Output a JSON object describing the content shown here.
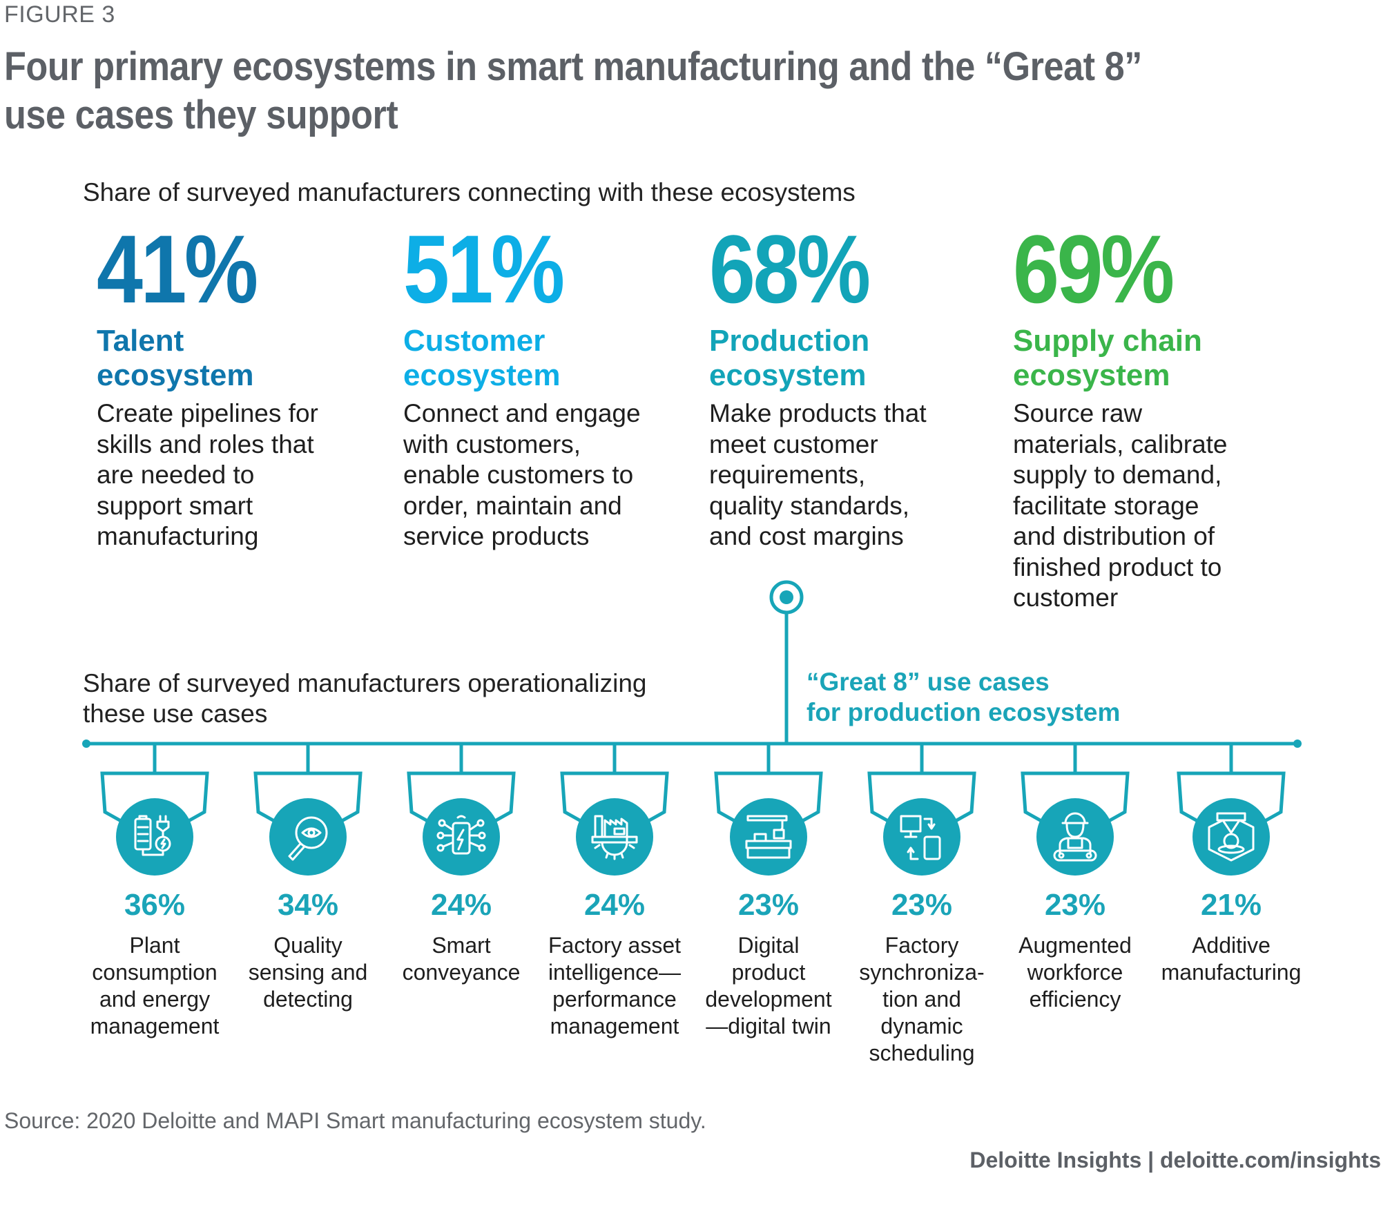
{
  "header": {
    "figure_label": "FIGURE 3",
    "title": "Four primary ecosystems in smart manufacturing and the “Great 8” use cases they support"
  },
  "ecosystems_section": {
    "subtitle": "Share of surveyed manufacturers connecting with these ecosystems",
    "items": [
      {
        "percent": "41%",
        "name_line1": "Talent",
        "name_line2": "ecosystem",
        "description": "Create pipelines for skills and roles that are needed to support smart manufacturing",
        "color": "#0f76ac"
      },
      {
        "percent": "51%",
        "name_line1": "Customer",
        "name_line2": "ecosystem",
        "description": "Connect and engage with customers, enable customers to order, maintain and service products",
        "color": "#0daee6"
      },
      {
        "percent": "68%",
        "name_line1": "Production",
        "name_line2": "ecosystem",
        "description": "Make products that meet customer requirements, quality standards, and cost margins",
        "color": "#12a4b8"
      },
      {
        "percent": "69%",
        "name_line1": "Supply chain",
        "name_line2": "ecosystem",
        "description": "Source raw materials, calibrate supply to demand, facilitate storage and distribution of finished product to customer",
        "color": "#3ab54a"
      }
    ]
  },
  "use_cases_section": {
    "subtitle": "Share of surveyed manufacturers operationalizing these use cases",
    "great8_line1": "“Great 8” use cases",
    "great8_line2": "for production ecosystem",
    "accent_color": "#17a5b8",
    "items": [
      {
        "percent": "36%",
        "label_lines": [
          "Plant",
          "consumption",
          "and energy",
          "management"
        ],
        "icon": "battery-plug-icon"
      },
      {
        "percent": "34%",
        "label_lines": [
          "Quality",
          "sensing and",
          "detecting"
        ],
        "icon": "magnifier-eye-icon"
      },
      {
        "percent": "24%",
        "label_lines": [
          "Smart",
          "conveyance"
        ],
        "icon": "smart-device-network-icon"
      },
      {
        "percent": "24%",
        "label_lines": [
          "Factory asset",
          "intelligence—",
          "performance",
          "management"
        ],
        "icon": "factory-gear-icon"
      },
      {
        "percent": "23%",
        "label_lines": [
          "Digital",
          "product",
          "development",
          "—digital twin"
        ],
        "icon": "assembly-line-icon"
      },
      {
        "percent": "23%",
        "label_lines": [
          "Factory",
          "synchroniza-",
          "tion and",
          "dynamic",
          "scheduling"
        ],
        "icon": "device-sync-icon"
      },
      {
        "percent": "23%",
        "label_lines": [
          "Augmented",
          "workforce",
          "efficiency"
        ],
        "icon": "worker-icon"
      },
      {
        "percent": "21%",
        "label_lines": [
          "Additive",
          "manufacturing"
        ],
        "icon": "3d-printer-icon"
      }
    ]
  },
  "chart_data": {
    "type": "bar",
    "title": "Four primary ecosystems in smart manufacturing and the “Great 8” use cases they support",
    "series_ecosystems": {
      "name": "Share of surveyed manufacturers connecting with these ecosystems",
      "categories": [
        "Talent ecosystem",
        "Customer ecosystem",
        "Production ecosystem",
        "Supply chain ecosystem"
      ],
      "values": [
        41,
        51,
        68,
        69
      ],
      "unit": "%"
    },
    "series_use_cases": {
      "name": "Share of surveyed manufacturers operationalizing these use cases",
      "categories": [
        "Plant consumption and energy management",
        "Quality sensing and detecting",
        "Smart conveyance",
        "Factory asset intelligence—performance management",
        "Digital product development—digital twin",
        "Factory synchronization and dynamic scheduling",
        "Augmented workforce efficiency",
        "Additive manufacturing"
      ],
      "values": [
        36,
        34,
        24,
        24,
        23,
        23,
        23,
        21
      ],
      "unit": "%"
    }
  },
  "footer": {
    "source": "Source: 2020 Deloitte and MAPI Smart manufacturing ecosystem study.",
    "credit": "Deloitte Insights | deloitte.com/insights"
  }
}
